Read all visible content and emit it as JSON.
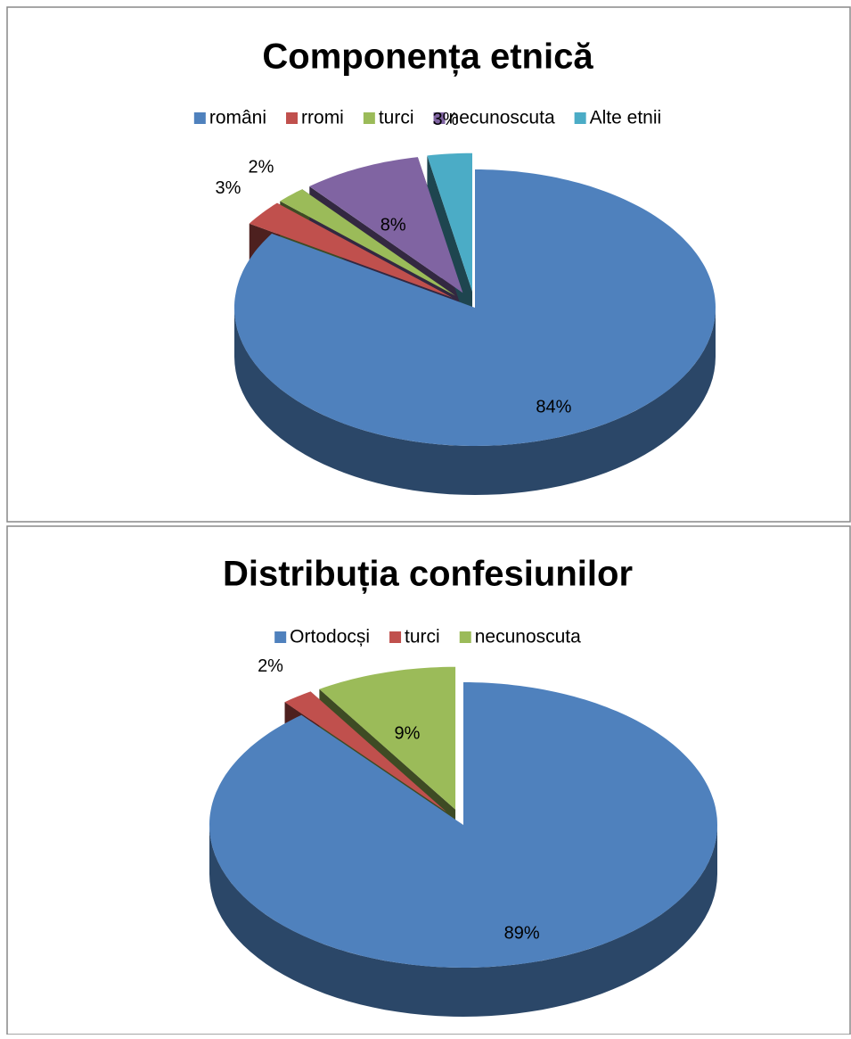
{
  "chart_data": [
    {
      "type": "pie",
      "title": "Componența etnică",
      "categories": [
        "români",
        "rromi",
        "turci",
        "necunoscuta",
        "Alte etnii"
      ],
      "values": [
        84,
        3,
        2,
        8,
        3
      ],
      "value_labels": [
        "84%",
        "3%",
        "2%",
        "8%",
        "3%"
      ],
      "colors": [
        "#4f81bd",
        "#c0504d",
        "#9bbb59",
        "#8064a2",
        "#4bacc6"
      ],
      "legend": "top"
    },
    {
      "type": "pie",
      "title": "Distribuția confesiunilor",
      "categories": [
        "Ortodocși",
        "turci",
        "necunoscuta"
      ],
      "values": [
        89,
        2,
        9
      ],
      "value_labels": [
        "89%",
        "2%",
        "9%"
      ],
      "colors": [
        "#4f81bd",
        "#c0504d",
        "#9bbb59"
      ],
      "legend": "top"
    }
  ]
}
